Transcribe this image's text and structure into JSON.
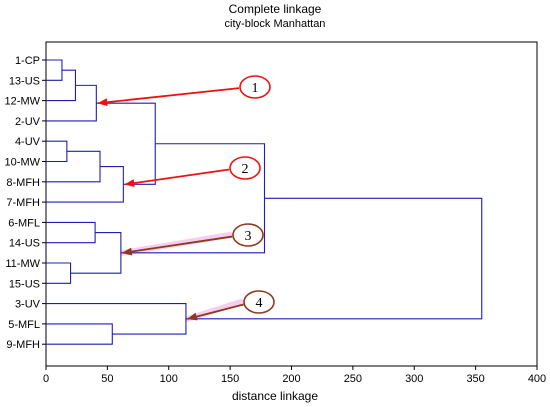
{
  "title": "Complete linkage",
  "subtitle": "city-block Manhattan",
  "xlabel": "distance linkage",
  "colors": {
    "tree": "#1f1fb4",
    "arrow_red": "#ee1111",
    "arrow_brown": "#8b3a1a",
    "highlight": "#f2a6e6",
    "axis": "#000000"
  },
  "chart_data": {
    "type": "dendrogram",
    "x_axis": {
      "min": 0,
      "max": 400,
      "ticks": [
        0,
        50,
        100,
        150,
        200,
        250,
        300,
        350,
        400
      ]
    },
    "leaves": [
      "1-CP",
      "13-US",
      "12-MW",
      "2-UV",
      "4-UV",
      "10-MW",
      "8-MFH",
      "7-MFH",
      "6-MFL",
      "14-US",
      "11-MW",
      "15-US",
      "3-UV",
      "5-MFL",
      "9-MFH"
    ],
    "merges": [
      {
        "id": "c1",
        "left": "1-CP",
        "right": "13-US",
        "height": 13
      },
      {
        "id": "c2",
        "left": "c1",
        "right": "12-MW",
        "height": 24
      },
      {
        "id": "c3",
        "left": "c2",
        "right": "2-UV",
        "height": 41
      },
      {
        "id": "c4",
        "left": "4-UV",
        "right": "10-MW",
        "height": 17
      },
      {
        "id": "c5",
        "left": "c4",
        "right": "8-MFH",
        "height": 44
      },
      {
        "id": "c6",
        "left": "c5",
        "right": "7-MFH",
        "height": 63
      },
      {
        "id": "c7",
        "left": "c3",
        "right": "c6",
        "height": 89
      },
      {
        "id": "c8",
        "left": "6-MFL",
        "right": "14-US",
        "height": 40
      },
      {
        "id": "c9",
        "left": "11-MW",
        "right": "15-US",
        "height": 20
      },
      {
        "id": "c10",
        "left": "c8",
        "right": "c9",
        "height": 61
      },
      {
        "id": "c11",
        "left": "c7",
        "right": "c10",
        "height": 178
      },
      {
        "id": "c12",
        "left": "5-MFL",
        "right": "9-MFH",
        "height": 54
      },
      {
        "id": "c13",
        "left": "3-UV",
        "right": "c12",
        "height": 114
      },
      {
        "id": "c14",
        "left": "c11",
        "right": "c13",
        "height": 355
      }
    ],
    "annotations": [
      {
        "label": "1",
        "points_to": "c3",
        "color": "red"
      },
      {
        "label": "2",
        "points_to": "c6",
        "color": "red"
      },
      {
        "label": "3",
        "points_to": "c10",
        "color": "brown"
      },
      {
        "label": "4",
        "points_to": "c13",
        "color": "brown"
      }
    ]
  }
}
